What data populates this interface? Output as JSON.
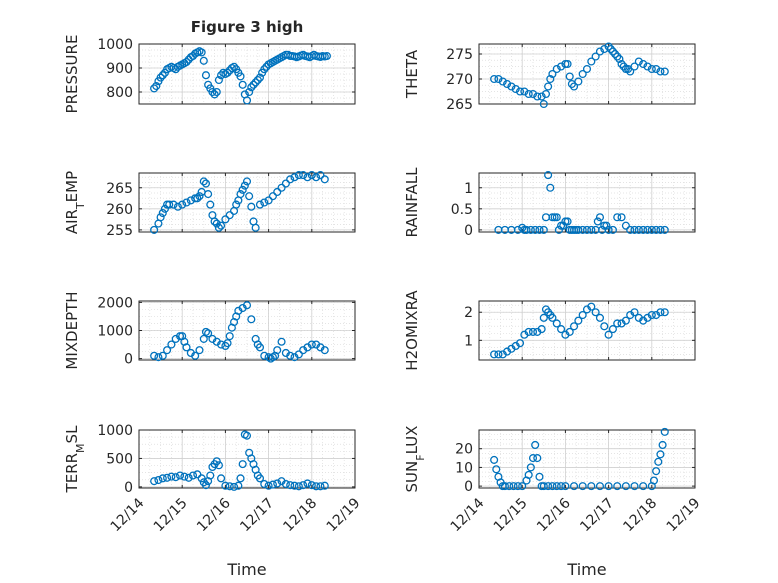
{
  "chart_data": [
    {
      "type": "scatter",
      "title": "Figure 3 high",
      "ylabel": "PRESSURE",
      "ylim": [
        750,
        1000
      ],
      "yticks": [
        800,
        900,
        1000
      ],
      "ytick_labels": [
        "800",
        "900",
        "1000"
      ],
      "x": [
        14.35,
        14.4,
        14.45,
        14.5,
        14.55,
        14.6,
        14.65,
        14.7,
        14.75,
        14.8,
        14.85,
        14.9,
        14.95,
        15.0,
        15.05,
        15.1,
        15.15,
        15.2,
        15.25,
        15.3,
        15.35,
        15.4,
        15.45,
        15.5,
        15.55,
        15.6,
        15.65,
        15.7,
        15.75,
        15.8,
        15.85,
        15.9,
        15.95,
        16.0,
        16.05,
        16.1,
        16.15,
        16.2,
        16.25,
        16.3,
        16.35,
        16.4,
        16.45,
        16.5,
        16.55,
        16.6,
        16.65,
        16.7,
        16.75,
        16.8,
        16.85,
        16.9,
        16.95,
        17.0,
        17.05,
        17.1,
        17.15,
        17.2,
        17.25,
        17.3,
        17.35,
        17.4,
        17.45,
        17.5,
        17.55,
        17.6,
        17.65,
        17.7,
        17.75,
        17.8,
        17.85,
        17.9,
        17.95,
        18.0,
        18.05,
        18.1,
        18.15,
        18.2,
        18.25,
        18.3,
        18.35
      ],
      "y": [
        815,
        825,
        845,
        860,
        870,
        880,
        895,
        900,
        905,
        900,
        895,
        905,
        910,
        915,
        920,
        925,
        935,
        945,
        950,
        960,
        965,
        970,
        965,
        930,
        870,
        830,
        815,
        800,
        790,
        800,
        850,
        870,
        880,
        875,
        880,
        890,
        900,
        905,
        895,
        880,
        865,
        830,
        790,
        765,
        800,
        820,
        830,
        840,
        850,
        860,
        880,
        895,
        905,
        915,
        920,
        925,
        930,
        935,
        940,
        945,
        950,
        955,
        955,
        950,
        950,
        948,
        945,
        948,
        952,
        955,
        950,
        948,
        945,
        950,
        955,
        950,
        948,
        946,
        950,
        948,
        950
      ]
    },
    {
      "type": "scatter",
      "ylabel": "THETA",
      "ylim": [
        265,
        277
      ],
      "yticks": [
        265,
        270,
        275
      ],
      "ytick_labels": [
        "265",
        "270",
        "275"
      ],
      "x": [
        14.35,
        14.45,
        14.55,
        14.65,
        14.75,
        14.85,
        14.95,
        15.05,
        15.15,
        15.25,
        15.35,
        15.45,
        15.5,
        15.55,
        15.6,
        15.65,
        15.7,
        15.8,
        15.9,
        16.0,
        16.05,
        16.1,
        16.15,
        16.2,
        16.3,
        16.4,
        16.5,
        16.6,
        16.7,
        16.8,
        16.9,
        17.0,
        17.05,
        17.1,
        17.15,
        17.2,
        17.25,
        17.3,
        17.35,
        17.4,
        17.45,
        17.5,
        17.6,
        17.7,
        17.8,
        17.9,
        18.0,
        18.1,
        18.2,
        18.3
      ],
      "y": [
        270,
        270,
        269.5,
        269,
        268.5,
        268,
        267.5,
        267.5,
        267,
        267,
        266.5,
        266.5,
        265,
        267,
        268.5,
        270,
        271,
        272,
        272.5,
        273,
        273,
        270.5,
        269,
        268.5,
        269.5,
        271,
        272,
        273.5,
        274.5,
        275.5,
        276,
        276.5,
        276,
        275.5,
        275,
        274.5,
        274,
        273,
        272.5,
        272,
        272,
        271.5,
        272.5,
        273.5,
        273,
        272.5,
        272,
        272,
        271.5,
        271.5
      ]
    },
    {
      "type": "scatter",
      "ylabel": "AIR_TEMP",
      "ylim": [
        254.5,
        268.5
      ],
      "yticks": [
        255,
        260,
        265
      ],
      "ytick_labels": [
        "255",
        "260",
        "265"
      ],
      "x": [
        14.35,
        14.45,
        14.5,
        14.55,
        14.6,
        14.65,
        14.7,
        14.8,
        14.9,
        15.0,
        15.1,
        15.2,
        15.3,
        15.35,
        15.4,
        15.45,
        15.5,
        15.55,
        15.6,
        15.65,
        15.7,
        15.75,
        15.8,
        15.85,
        15.9,
        16.0,
        16.1,
        16.2,
        16.25,
        16.3,
        16.35,
        16.4,
        16.45,
        16.5,
        16.55,
        16.6,
        16.65,
        16.7,
        16.8,
        16.9,
        17.0,
        17.1,
        17.2,
        17.3,
        17.4,
        17.5,
        17.6,
        17.7,
        17.8,
        17.9,
        18.0,
        18.1,
        18.2,
        18.3
      ],
      "y": [
        255,
        256.5,
        258,
        259,
        260,
        261,
        261,
        261,
        260.5,
        261,
        261.5,
        262,
        262.5,
        262.5,
        263,
        264,
        266.5,
        266,
        263.5,
        261,
        258.5,
        257,
        256.5,
        255.5,
        256,
        257.5,
        258.5,
        259.5,
        261,
        262,
        263.5,
        264.5,
        265.5,
        266.5,
        263,
        260.5,
        257,
        255.5,
        261,
        261.5,
        262,
        263,
        264,
        265,
        266,
        267,
        267.5,
        268,
        268,
        267.5,
        268,
        267.5,
        268,
        267
      ]
    },
    {
      "type": "scatter",
      "ylabel": "RAINFALL",
      "ylim": [
        -0.05,
        1.35
      ],
      "yticks": [
        0,
        0.5,
        1
      ],
      "ytick_labels": [
        "0",
        "0.5",
        "1"
      ],
      "x": [
        14.45,
        14.6,
        14.75,
        14.9,
        15.0,
        15.05,
        15.1,
        15.2,
        15.3,
        15.4,
        15.5,
        15.55,
        15.6,
        15.65,
        15.7,
        15.75,
        15.8,
        15.85,
        15.9,
        15.95,
        16.0,
        16.05,
        16.1,
        16.15,
        16.2,
        16.25,
        16.3,
        16.4,
        16.5,
        16.6,
        16.7,
        16.75,
        16.8,
        16.85,
        16.9,
        16.95,
        17.0,
        17.1,
        17.2,
        17.3,
        17.4,
        17.5,
        17.6,
        17.7,
        17.8,
        17.9,
        18.0,
        18.1,
        18.2,
        18.3
      ],
      "y": [
        0,
        0,
        0,
        0,
        0.05,
        0,
        0,
        0,
        0,
        0,
        0,
        0.3,
        1.3,
        1.0,
        0.3,
        0.3,
        0.3,
        0,
        0.1,
        0.1,
        0.2,
        0.2,
        0,
        0,
        0,
        0,
        0,
        0,
        0,
        0,
        0,
        0.2,
        0.3,
        0,
        0.1,
        0.1,
        0,
        0,
        0.3,
        0.3,
        0.1,
        0,
        0,
        0,
        0,
        0,
        0,
        0,
        0,
        0
      ]
    },
    {
      "type": "scatter",
      "ylabel": "MIXDEPTH",
      "ylim": [
        -50,
        2050
      ],
      "yticks": [
        0,
        1000,
        2000
      ],
      "ytick_labels": [
        "0",
        "1000",
        "2000"
      ],
      "x": [
        14.35,
        14.45,
        14.55,
        14.65,
        14.75,
        14.85,
        14.95,
        15.0,
        15.05,
        15.1,
        15.2,
        15.3,
        15.4,
        15.5,
        15.55,
        15.6,
        15.7,
        15.8,
        15.9,
        16.0,
        16.05,
        16.1,
        16.15,
        16.2,
        16.25,
        16.3,
        16.4,
        16.5,
        16.6,
        16.7,
        16.75,
        16.8,
        16.9,
        17.0,
        17.05,
        17.1,
        17.15,
        17.2,
        17.3,
        17.4,
        17.5,
        17.6,
        17.7,
        17.8,
        17.9,
        18.0,
        18.1,
        18.2,
        18.3
      ],
      "y": [
        100,
        50,
        100,
        300,
        500,
        700,
        800,
        800,
        600,
        400,
        200,
        100,
        300,
        700,
        950,
        900,
        700,
        600,
        500,
        450,
        550,
        800,
        1100,
        1300,
        1500,
        1700,
        1800,
        1900,
        1400,
        700,
        500,
        400,
        100,
        50,
        0,
        50,
        100,
        300,
        600,
        200,
        100,
        50,
        150,
        300,
        400,
        500,
        500,
        400,
        300
      ]
    },
    {
      "type": "scatter",
      "ylabel": "H2OMIXRA",
      "ylim": [
        0.3,
        2.4
      ],
      "yticks": [
        1,
        2
      ],
      "ytick_labels": [
        "1",
        "2"
      ],
      "x": [
        14.35,
        14.45,
        14.55,
        14.65,
        14.75,
        14.85,
        14.95,
        15.05,
        15.15,
        15.25,
        15.35,
        15.45,
        15.5,
        15.55,
        15.6,
        15.65,
        15.7,
        15.8,
        15.9,
        16.0,
        16.1,
        16.2,
        16.3,
        16.4,
        16.5,
        16.6,
        16.7,
        16.8,
        16.9,
        17.0,
        17.1,
        17.2,
        17.3,
        17.4,
        17.5,
        17.6,
        17.7,
        17.8,
        17.9,
        18.0,
        18.1,
        18.2,
        18.3
      ],
      "y": [
        0.5,
        0.5,
        0.5,
        0.6,
        0.7,
        0.8,
        0.9,
        1.2,
        1.3,
        1.3,
        1.3,
        1.4,
        1.8,
        2.1,
        2.0,
        1.9,
        1.8,
        1.6,
        1.4,
        1.2,
        1.3,
        1.5,
        1.7,
        1.9,
        2.1,
        2.2,
        2.0,
        1.8,
        1.5,
        1.2,
        1.4,
        1.6,
        1.6,
        1.7,
        1.9,
        2.0,
        1.8,
        1.7,
        1.8,
        1.9,
        1.9,
        2.0,
        2.0
      ]
    },
    {
      "type": "scatter",
      "ylabel": "TERR_MSL",
      "ylim": [
        -20,
        1000
      ],
      "yticks": [
        0,
        500,
        1000
      ],
      "ytick_labels": [
        "0",
        "500",
        "1000"
      ],
      "x": [
        14.35,
        14.45,
        14.55,
        14.65,
        14.75,
        14.85,
        14.95,
        15.05,
        15.15,
        15.25,
        15.35,
        15.45,
        15.5,
        15.55,
        15.6,
        15.65,
        15.7,
        15.75,
        15.8,
        15.85,
        15.9,
        16.0,
        16.1,
        16.2,
        16.3,
        16.35,
        16.4,
        16.45,
        16.5,
        16.55,
        16.6,
        16.65,
        16.7,
        16.75,
        16.8,
        16.9,
        17.0,
        17.1,
        17.2,
        17.3,
        17.4,
        17.5,
        17.6,
        17.7,
        17.8,
        17.9,
        18.0,
        18.1,
        18.2,
        18.3
      ],
      "y": [
        100,
        120,
        150,
        160,
        180,
        170,
        200,
        180,
        160,
        200,
        220,
        150,
        80,
        30,
        100,
        200,
        350,
        400,
        450,
        380,
        150,
        20,
        10,
        0,
        20,
        150,
        400,
        920,
        900,
        600,
        500,
        400,
        300,
        200,
        150,
        50,
        20,
        40,
        60,
        100,
        50,
        30,
        20,
        10,
        30,
        60,
        30,
        10,
        10,
        20
      ]
    },
    {
      "type": "scatter",
      "ylabel": "SUN_FLUX",
      "ylim": [
        -1,
        30
      ],
      "yticks": [
        0,
        10,
        20
      ],
      "ytick_labels": [
        "0",
        "10",
        "20"
      ],
      "x": [
        14.35,
        14.4,
        14.45,
        14.5,
        14.55,
        14.6,
        14.7,
        14.8,
        14.9,
        15.0,
        15.1,
        15.15,
        15.2,
        15.25,
        15.3,
        15.35,
        15.4,
        15.45,
        15.5,
        15.6,
        15.7,
        15.8,
        15.9,
        16.0,
        16.2,
        16.4,
        16.6,
        16.8,
        17.0,
        17.2,
        17.4,
        17.6,
        17.8,
        18.0,
        18.05,
        18.1,
        18.15,
        18.2,
        18.25,
        18.3
      ],
      "y": [
        14,
        9,
        5,
        2,
        0,
        0,
        0,
        0,
        0,
        0,
        3,
        6,
        10,
        15,
        22,
        15,
        5,
        0,
        0,
        0,
        0,
        0,
        0,
        0,
        0,
        0,
        0,
        0,
        0,
        0,
        0,
        0,
        0,
        0,
        3,
        8,
        13,
        17,
        22,
        29
      ]
    }
  ],
  "x_axis": {
    "xlim": [
      14.0,
      19.0
    ],
    "ticks": [
      14,
      15,
      16,
      17,
      18,
      19
    ],
    "tick_labels": [
      "12/14",
      "12/15",
      "12/16",
      "12/17",
      "12/18",
      "12/19"
    ],
    "xlabel": "Time",
    "grid": "major and minor (dotted)"
  },
  "colors": {
    "marker": "#0072BD",
    "axis": "#262626",
    "grid": "#dcdcdc"
  },
  "marker": "open-circle"
}
